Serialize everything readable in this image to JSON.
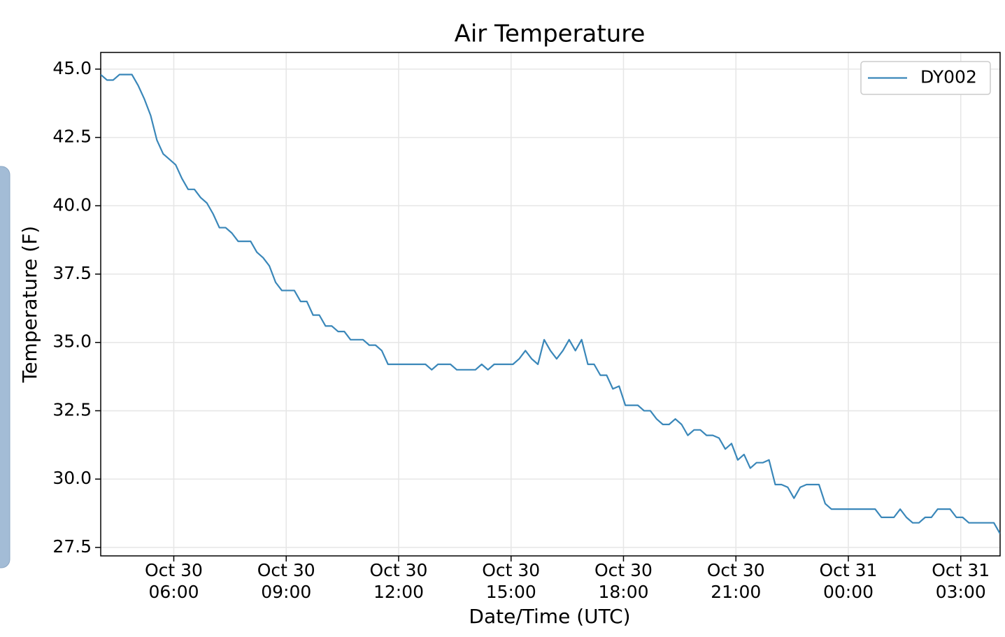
{
  "chart_data": {
    "type": "line",
    "title": "Air Temperature",
    "x_label": "Date/Time (UTC)",
    "y_label": "Temperature (F)",
    "grid": true,
    "legend": "upper right",
    "xlim": [
      "Oct 30 04:03",
      "Oct 31 04:03"
    ],
    "xticks": [
      {
        "value": "Oct 30 06:00",
        "label": [
          "Oct 30",
          "06:00"
        ]
      },
      {
        "value": "Oct 30 09:00",
        "label": [
          "Oct 30",
          "09:00"
        ]
      },
      {
        "value": "Oct 30 12:00",
        "label": [
          "Oct 30",
          "12:00"
        ]
      },
      {
        "value": "Oct 30 15:00",
        "label": [
          "Oct 30",
          "15:00"
        ]
      },
      {
        "value": "Oct 30 18:00",
        "label": [
          "Oct 30",
          "18:00"
        ]
      },
      {
        "value": "Oct 30 21:00",
        "label": [
          "Oct 30",
          "21:00"
        ]
      },
      {
        "value": "Oct 31 00:00",
        "label": [
          "Oct 31",
          "00:00"
        ]
      },
      {
        "value": "Oct 31 03:00",
        "label": [
          "Oct 31",
          "03:00"
        ]
      }
    ],
    "ylim": [
      27.19,
      45.61
    ],
    "yticks": [
      27.5,
      {
        "value": 30,
        "label": "30.0"
      },
      32.5,
      {
        "value": 35,
        "label": "35.0"
      },
      37.5,
      {
        "value": 40,
        "label": "40.0"
      },
      42.5,
      {
        "value": 45,
        "label": "45.0"
      }
    ],
    "x": [
      "Oct 30 04:03",
      "Oct 30 04:13",
      "Oct 30 04:23",
      "Oct 30 04:33",
      "Oct 30 04:43",
      "Oct 30 04:53",
      "Oct 30 05:03",
      "Oct 30 05:13",
      "Oct 30 05:23",
      "Oct 30 05:33",
      "Oct 30 05:43",
      "Oct 30 05:53",
      "Oct 30 06:03",
      "Oct 30 06:13",
      "Oct 30 06:23",
      "Oct 30 06:33",
      "Oct 30 06:43",
      "Oct 30 06:53",
      "Oct 30 07:03",
      "Oct 30 07:13",
      "Oct 30 07:23",
      "Oct 30 07:33",
      "Oct 30 07:43",
      "Oct 30 07:53",
      "Oct 30 08:03",
      "Oct 30 08:13",
      "Oct 30 08:23",
      "Oct 30 08:33",
      "Oct 30 08:43",
      "Oct 30 08:53",
      "Oct 30 09:03",
      "Oct 30 09:13",
      "Oct 30 09:23",
      "Oct 30 09:33",
      "Oct 30 09:43",
      "Oct 30 09:53",
      "Oct 30 10:03",
      "Oct 30 10:13",
      "Oct 30 10:23",
      "Oct 30 10:33",
      "Oct 30 10:43",
      "Oct 30 10:53",
      "Oct 30 11:03",
      "Oct 30 11:13",
      "Oct 30 11:23",
      "Oct 30 11:33",
      "Oct 30 11:43",
      "Oct 30 11:53",
      "Oct 30 12:03",
      "Oct 30 12:13",
      "Oct 30 12:23",
      "Oct 30 12:33",
      "Oct 30 12:43",
      "Oct 30 12:53",
      "Oct 30 13:03",
      "Oct 30 13:13",
      "Oct 30 13:23",
      "Oct 30 13:33",
      "Oct 30 13:43",
      "Oct 30 13:53",
      "Oct 30 14:03",
      "Oct 30 14:13",
      "Oct 30 14:23",
      "Oct 30 14:33",
      "Oct 30 14:43",
      "Oct 30 14:53",
      "Oct 30 15:03",
      "Oct 30 15:13",
      "Oct 30 15:23",
      "Oct 30 15:33",
      "Oct 30 15:43",
      "Oct 30 15:53",
      "Oct 30 16:03",
      "Oct 30 16:13",
      "Oct 30 16:23",
      "Oct 30 16:33",
      "Oct 30 16:43",
      "Oct 30 16:53",
      "Oct 30 17:03",
      "Oct 30 17:13",
      "Oct 30 17:23",
      "Oct 30 17:33",
      "Oct 30 17:43",
      "Oct 30 17:53",
      "Oct 30 18:03",
      "Oct 30 18:13",
      "Oct 30 18:23",
      "Oct 30 18:33",
      "Oct 30 18:43",
      "Oct 30 18:53",
      "Oct 30 19:03",
      "Oct 30 19:13",
      "Oct 30 19:23",
      "Oct 30 19:33",
      "Oct 30 19:43",
      "Oct 30 19:53",
      "Oct 30 20:03",
      "Oct 30 20:13",
      "Oct 30 20:23",
      "Oct 30 20:33",
      "Oct 30 20:43",
      "Oct 30 20:53",
      "Oct 30 21:03",
      "Oct 30 21:13",
      "Oct 30 21:23",
      "Oct 30 21:33",
      "Oct 30 21:43",
      "Oct 30 21:53",
      "Oct 30 22:03",
      "Oct 30 22:13",
      "Oct 30 22:23",
      "Oct 30 22:33",
      "Oct 30 22:43",
      "Oct 30 22:53",
      "Oct 30 23:03",
      "Oct 30 23:13",
      "Oct 30 23:23",
      "Oct 30 23:33",
      "Oct 30 23:43",
      "Oct 30 23:53",
      "Oct 31 00:03",
      "Oct 31 00:13",
      "Oct 31 00:23",
      "Oct 31 00:33",
      "Oct 31 00:43",
      "Oct 31 00:53",
      "Oct 31 01:03",
      "Oct 31 01:13",
      "Oct 31 01:23",
      "Oct 31 01:33",
      "Oct 31 01:43",
      "Oct 31 01:53",
      "Oct 31 02:03",
      "Oct 31 02:13",
      "Oct 31 02:23",
      "Oct 31 02:33",
      "Oct 31 02:43",
      "Oct 31 02:53",
      "Oct 31 03:03",
      "Oct 31 03:13",
      "Oct 31 03:23",
      "Oct 31 03:33",
      "Oct 31 03:43",
      "Oct 31 03:53",
      "Oct 31 04:03"
    ],
    "series": [
      {
        "name": "DY002",
        "color": "#3a87b9",
        "values": [
          44.8,
          44.6,
          44.6,
          44.8,
          44.8,
          44.8,
          44.4,
          43.9,
          43.3,
          42.4,
          41.9,
          41.7,
          41.5,
          41.0,
          40.6,
          40.6,
          40.3,
          40.1,
          39.7,
          39.2,
          39.2,
          39.0,
          38.7,
          38.7,
          38.7,
          38.3,
          38.1,
          37.8,
          37.2,
          36.9,
          36.9,
          36.9,
          36.5,
          36.5,
          36.0,
          36.0,
          35.6,
          35.6,
          35.4,
          35.4,
          35.1,
          35.1,
          35.1,
          34.9,
          34.9,
          34.7,
          34.2,
          34.2,
          34.2,
          34.2,
          34.2,
          34.2,
          34.2,
          34.0,
          34.2,
          34.2,
          34.2,
          34.0,
          34.0,
          34.0,
          34.0,
          34.2,
          34.0,
          34.2,
          34.2,
          34.2,
          34.2,
          34.4,
          34.7,
          34.4,
          34.2,
          35.1,
          34.7,
          34.4,
          34.7,
          35.1,
          34.7,
          35.1,
          34.2,
          34.2,
          33.8,
          33.8,
          33.3,
          33.4,
          32.7,
          32.7,
          32.7,
          32.5,
          32.5,
          32.2,
          32.0,
          32.0,
          32.2,
          32.0,
          31.6,
          31.8,
          31.8,
          31.6,
          31.6,
          31.5,
          31.1,
          31.3,
          30.7,
          30.9,
          30.4,
          30.6,
          30.6,
          30.7,
          29.8,
          29.8,
          29.7,
          29.3,
          29.7,
          29.8,
          29.8,
          29.8,
          29.1,
          28.9,
          28.9,
          28.9,
          28.9,
          28.9,
          28.9,
          28.9,
          28.9,
          28.6,
          28.6,
          28.6,
          28.9,
          28.6,
          28.4,
          28.4,
          28.6,
          28.6,
          28.9,
          28.9,
          28.9,
          28.6,
          28.6,
          28.4,
          28.4,
          28.4,
          28.4,
          28.4,
          28.0
        ]
      }
    ]
  }
}
